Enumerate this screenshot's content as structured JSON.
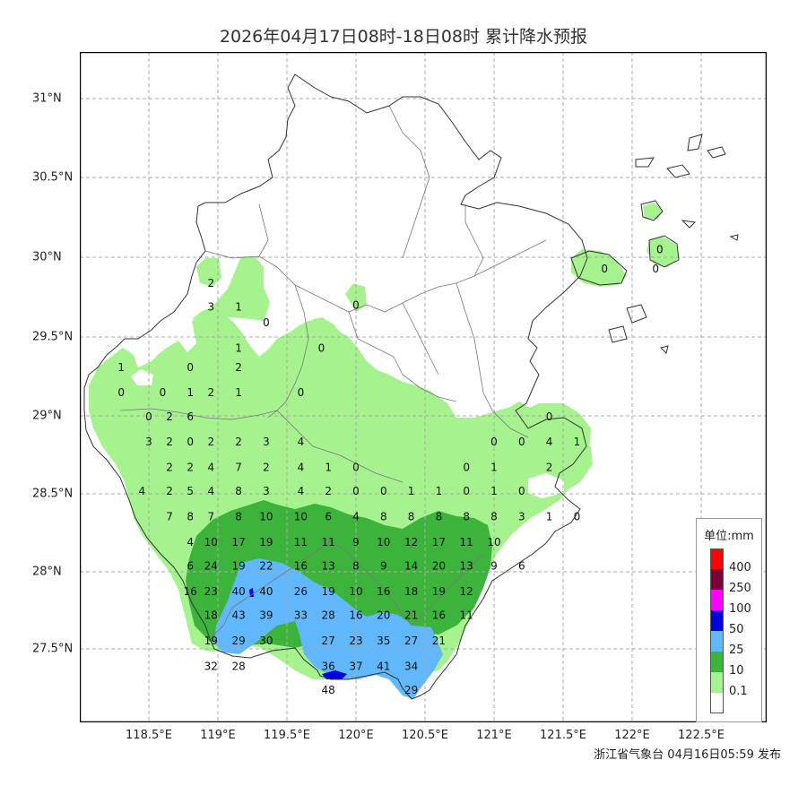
{
  "title": "2026年04月17日08时-18日08时 累计降水预报",
  "footer": "浙江省气象台 04月16日05:59 发布",
  "x_ticks": [
    "118.5°E",
    "119°E",
    "119.5°E",
    "120°E",
    "120.5°E",
    "121°E",
    "121.5°E",
    "122°E",
    "122.5°E"
  ],
  "y_ticks": [
    "31°N",
    "30.5°N",
    "30°N",
    "29.5°N",
    "29°N",
    "28.5°N",
    "28°N",
    "27.5°N"
  ],
  "legend": {
    "title": "单位:mm",
    "levels": [
      {
        "label": "400",
        "color": "#ff0000"
      },
      {
        "label": "250",
        "color": "#7a0038"
      },
      {
        "label": "100",
        "color": "#ff00ff"
      },
      {
        "label": "50",
        "color": "#0000e0"
      },
      {
        "label": "25",
        "color": "#61b8ff"
      },
      {
        "label": "10",
        "color": "#3cb43c"
      },
      {
        "label": "0.1",
        "color": "#a6f28f"
      },
      {
        "label": "",
        "color": "#ffffff"
      }
    ]
  },
  "colors": {
    "light_green": "#a6f28f",
    "green": "#3cb43c",
    "blue": "#61b8ff",
    "dark_blue": "#0000e0",
    "border": "#333333",
    "grid": "#aaaaaa"
  },
  "station_values": [
    {
      "lon": 118.95,
      "lat": 29.84,
      "v": "2"
    },
    {
      "lon": 118.95,
      "lat": 29.69,
      "v": "3"
    },
    {
      "lon": 119.15,
      "lat": 29.69,
      "v": "1"
    },
    {
      "lon": 119.35,
      "lat": 29.59,
      "v": "0"
    },
    {
      "lon": 119.15,
      "lat": 29.43,
      "v": "1"
    },
    {
      "lon": 118.8,
      "lat": 29.31,
      "v": "0"
    },
    {
      "lon": 119.15,
      "lat": 29.31,
      "v": "2"
    },
    {
      "lon": 118.3,
      "lat": 29.31,
      "v": "1"
    },
    {
      "lon": 118.3,
      "lat": 29.15,
      "v": "0"
    },
    {
      "lon": 118.6,
      "lat": 29.15,
      "v": "0"
    },
    {
      "lon": 118.8,
      "lat": 29.15,
      "v": "1"
    },
    {
      "lon": 118.95,
      "lat": 29.15,
      "v": "2"
    },
    {
      "lon": 119.15,
      "lat": 29.15,
      "v": "1"
    },
    {
      "lon": 119.75,
      "lat": 29.43,
      "v": "0"
    },
    {
      "lon": 119.6,
      "lat": 29.15,
      "v": "0"
    },
    {
      "lon": 120.0,
      "lat": 29.7,
      "v": "0"
    },
    {
      "lon": 118.5,
      "lat": 29.0,
      "v": "0"
    },
    {
      "lon": 118.65,
      "lat": 29.0,
      "v": "2"
    },
    {
      "lon": 118.8,
      "lat": 29.0,
      "v": "6"
    },
    {
      "lon": 118.5,
      "lat": 28.84,
      "v": "3"
    },
    {
      "lon": 118.65,
      "lat": 28.84,
      "v": "2"
    },
    {
      "lon": 118.8,
      "lat": 28.84,
      "v": "0"
    },
    {
      "lon": 118.95,
      "lat": 28.84,
      "v": "2"
    },
    {
      "lon": 119.15,
      "lat": 28.84,
      "v": "2"
    },
    {
      "lon": 119.35,
      "lat": 28.84,
      "v": "3"
    },
    {
      "lon": 119.6,
      "lat": 28.84,
      "v": "4"
    },
    {
      "lon": 118.65,
      "lat": 28.68,
      "v": "2"
    },
    {
      "lon": 118.8,
      "lat": 28.68,
      "v": "2"
    },
    {
      "lon": 118.95,
      "lat": 28.68,
      "v": "4"
    },
    {
      "lon": 119.15,
      "lat": 28.68,
      "v": "7"
    },
    {
      "lon": 119.35,
      "lat": 28.68,
      "v": "2"
    },
    {
      "lon": 119.6,
      "lat": 28.68,
      "v": "4"
    },
    {
      "lon": 119.8,
      "lat": 28.68,
      "v": "1"
    },
    {
      "lon": 120.0,
      "lat": 28.68,
      "v": "0"
    },
    {
      "lon": 118.45,
      "lat": 28.53,
      "v": "4"
    },
    {
      "lon": 118.65,
      "lat": 28.53,
      "v": "2"
    },
    {
      "lon": 118.8,
      "lat": 28.53,
      "v": "5"
    },
    {
      "lon": 118.95,
      "lat": 28.53,
      "v": "4"
    },
    {
      "lon": 119.15,
      "lat": 28.53,
      "v": "8"
    },
    {
      "lon": 119.35,
      "lat": 28.53,
      "v": "3"
    },
    {
      "lon": 119.6,
      "lat": 28.53,
      "v": "4"
    },
    {
      "lon": 119.8,
      "lat": 28.53,
      "v": "2"
    },
    {
      "lon": 120.0,
      "lat": 28.53,
      "v": "0"
    },
    {
      "lon": 120.2,
      "lat": 28.53,
      "v": "0"
    },
    {
      "lon": 120.4,
      "lat": 28.53,
      "v": "1"
    },
    {
      "lon": 120.6,
      "lat": 28.53,
      "v": "1"
    },
    {
      "lon": 120.8,
      "lat": 28.53,
      "v": "0"
    },
    {
      "lon": 121.0,
      "lat": 28.53,
      "v": "1"
    },
    {
      "lon": 121.2,
      "lat": 28.53,
      "v": "0"
    },
    {
      "lon": 120.8,
      "lat": 28.68,
      "v": "0"
    },
    {
      "lon": 121.0,
      "lat": 28.68,
      "v": "1"
    },
    {
      "lon": 121.0,
      "lat": 28.84,
      "v": "0"
    },
    {
      "lon": 121.2,
      "lat": 28.84,
      "v": "0"
    },
    {
      "lon": 121.4,
      "lat": 28.84,
      "v": "4"
    },
    {
      "lon": 121.6,
      "lat": 28.84,
      "v": "1"
    },
    {
      "lon": 121.4,
      "lat": 29.0,
      "v": "0"
    },
    {
      "lon": 121.4,
      "lat": 28.68,
      "v": "2"
    },
    {
      "lon": 118.65,
      "lat": 28.37,
      "v": "7"
    },
    {
      "lon": 118.8,
      "lat": 28.37,
      "v": "8"
    },
    {
      "lon": 118.95,
      "lat": 28.37,
      "v": "7"
    },
    {
      "lon": 119.15,
      "lat": 28.37,
      "v": "8"
    },
    {
      "lon": 119.35,
      "lat": 28.37,
      "v": "10"
    },
    {
      "lon": 119.6,
      "lat": 28.37,
      "v": "10"
    },
    {
      "lon": 119.8,
      "lat": 28.37,
      "v": "6"
    },
    {
      "lon": 120.0,
      "lat": 28.37,
      "v": "4"
    },
    {
      "lon": 120.2,
      "lat": 28.37,
      "v": "8"
    },
    {
      "lon": 120.4,
      "lat": 28.37,
      "v": "8"
    },
    {
      "lon": 120.6,
      "lat": 28.37,
      "v": "8"
    },
    {
      "lon": 120.8,
      "lat": 28.37,
      "v": "8"
    },
    {
      "lon": 121.0,
      "lat": 28.37,
      "v": "8"
    },
    {
      "lon": 121.2,
      "lat": 28.37,
      "v": "3"
    },
    {
      "lon": 121.4,
      "lat": 28.37,
      "v": "1"
    },
    {
      "lon": 121.6,
      "lat": 28.37,
      "v": "0"
    },
    {
      "lon": 118.8,
      "lat": 28.21,
      "v": "4"
    },
    {
      "lon": 118.95,
      "lat": 28.21,
      "v": "10"
    },
    {
      "lon": 119.15,
      "lat": 28.21,
      "v": "17"
    },
    {
      "lon": 119.35,
      "lat": 28.21,
      "v": "19"
    },
    {
      "lon": 119.6,
      "lat": 28.21,
      "v": "11"
    },
    {
      "lon": 119.8,
      "lat": 28.21,
      "v": "11"
    },
    {
      "lon": 120.0,
      "lat": 28.21,
      "v": "9"
    },
    {
      "lon": 120.2,
      "lat": 28.21,
      "v": "10"
    },
    {
      "lon": 120.4,
      "lat": 28.21,
      "v": "12"
    },
    {
      "lon": 120.6,
      "lat": 28.21,
      "v": "17"
    },
    {
      "lon": 120.8,
      "lat": 28.21,
      "v": "11"
    },
    {
      "lon": 121.0,
      "lat": 28.21,
      "v": "10"
    },
    {
      "lon": 118.8,
      "lat": 28.06,
      "v": "6"
    },
    {
      "lon": 118.95,
      "lat": 28.06,
      "v": "24"
    },
    {
      "lon": 119.15,
      "lat": 28.06,
      "v": "19"
    },
    {
      "lon": 119.35,
      "lat": 28.06,
      "v": "22"
    },
    {
      "lon": 119.6,
      "lat": 28.06,
      "v": "16"
    },
    {
      "lon": 119.8,
      "lat": 28.06,
      "v": "13"
    },
    {
      "lon": 120.0,
      "lat": 28.06,
      "v": "8"
    },
    {
      "lon": 120.2,
      "lat": 28.06,
      "v": "9"
    },
    {
      "lon": 120.4,
      "lat": 28.06,
      "v": "14"
    },
    {
      "lon": 120.6,
      "lat": 28.06,
      "v": "20"
    },
    {
      "lon": 120.8,
      "lat": 28.06,
      "v": "13"
    },
    {
      "lon": 121.0,
      "lat": 28.06,
      "v": "9"
    },
    {
      "lon": 121.2,
      "lat": 28.06,
      "v": "6"
    },
    {
      "lon": 118.8,
      "lat": 27.9,
      "v": "16"
    },
    {
      "lon": 118.95,
      "lat": 27.9,
      "v": "23"
    },
    {
      "lon": 119.15,
      "lat": 27.9,
      "v": "40"
    },
    {
      "lon": 119.35,
      "lat": 27.9,
      "v": "40"
    },
    {
      "lon": 119.6,
      "lat": 27.9,
      "v": "26"
    },
    {
      "lon": 119.8,
      "lat": 27.9,
      "v": "19"
    },
    {
      "lon": 120.0,
      "lat": 27.9,
      "v": "10"
    },
    {
      "lon": 120.2,
      "lat": 27.9,
      "v": "16"
    },
    {
      "lon": 120.4,
      "lat": 27.9,
      "v": "18"
    },
    {
      "lon": 120.6,
      "lat": 27.9,
      "v": "19"
    },
    {
      "lon": 120.8,
      "lat": 27.9,
      "v": "12"
    },
    {
      "lon": 118.95,
      "lat": 27.75,
      "v": "18"
    },
    {
      "lon": 119.15,
      "lat": 27.75,
      "v": "43"
    },
    {
      "lon": 119.35,
      "lat": 27.75,
      "v": "39"
    },
    {
      "lon": 119.6,
      "lat": 27.75,
      "v": "33"
    },
    {
      "lon": 119.8,
      "lat": 27.75,
      "v": "28"
    },
    {
      "lon": 120.0,
      "lat": 27.75,
      "v": "16"
    },
    {
      "lon": 120.2,
      "lat": 27.75,
      "v": "20"
    },
    {
      "lon": 120.4,
      "lat": 27.75,
      "v": "21"
    },
    {
      "lon": 120.6,
      "lat": 27.75,
      "v": "16"
    },
    {
      "lon": 120.8,
      "lat": 27.75,
      "v": "11"
    },
    {
      "lon": 118.95,
      "lat": 27.59,
      "v": "19"
    },
    {
      "lon": 119.15,
      "lat": 27.59,
      "v": "29"
    },
    {
      "lon": 119.35,
      "lat": 27.59,
      "v": "30"
    },
    {
      "lon": 119.8,
      "lat": 27.59,
      "v": "27"
    },
    {
      "lon": 120.0,
      "lat": 27.59,
      "v": "23"
    },
    {
      "lon": 120.2,
      "lat": 27.59,
      "v": "35"
    },
    {
      "lon": 120.4,
      "lat": 27.59,
      "v": "27"
    },
    {
      "lon": 120.6,
      "lat": 27.59,
      "v": "21"
    },
    {
      "lon": 118.95,
      "lat": 27.43,
      "v": "32"
    },
    {
      "lon": 119.15,
      "lat": 27.43,
      "v": "28"
    },
    {
      "lon": 119.8,
      "lat": 27.43,
      "v": "36"
    },
    {
      "lon": 120.0,
      "lat": 27.43,
      "v": "37"
    },
    {
      "lon": 120.2,
      "lat": 27.43,
      "v": "41"
    },
    {
      "lon": 120.4,
      "lat": 27.43,
      "v": "34"
    },
    {
      "lon": 119.8,
      "lat": 27.28,
      "v": "48"
    },
    {
      "lon": 120.4,
      "lat": 27.28,
      "v": "29"
    },
    {
      "lon": 121.8,
      "lat": 29.93,
      "v": "0"
    },
    {
      "lon": 122.17,
      "lat": 29.93,
      "v": "0"
    },
    {
      "lon": 122.2,
      "lat": 30.05,
      "v": "0"
    }
  ]
}
